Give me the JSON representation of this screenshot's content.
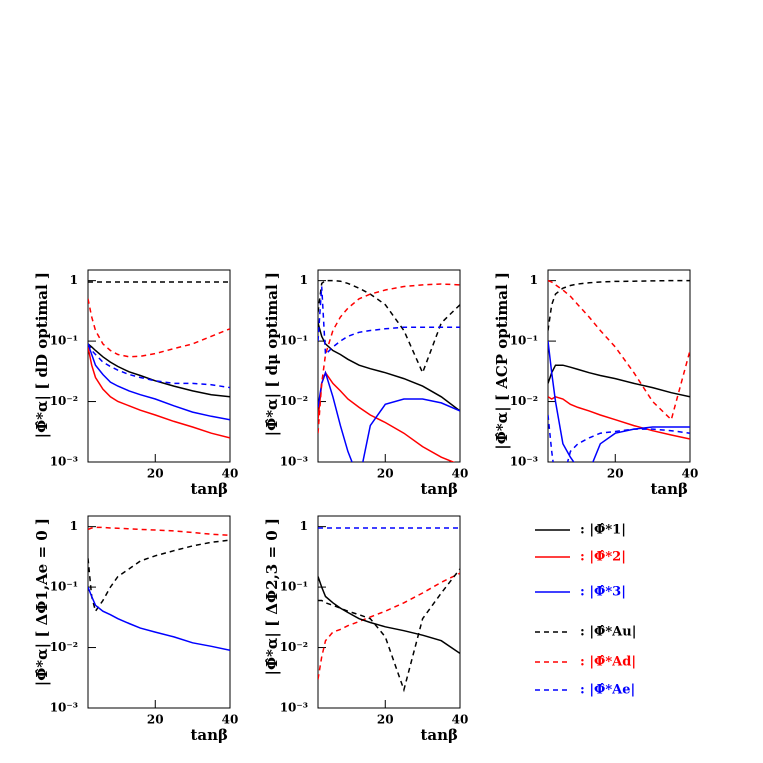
{
  "chart_data": [
    {
      "type": "line",
      "log_y": true,
      "ylabel": "|Φ̂*α| [ dD optimal ]",
      "xlabel": "tanβ",
      "x": [
        2,
        3,
        4,
        6,
        8,
        10,
        13,
        16,
        20,
        25,
        30,
        35,
        40
      ],
      "xlim": [
        2,
        40
      ],
      "xticks": [
        20,
        40
      ],
      "ylim": [
        0.001,
        1.5
      ],
      "yticks": [
        {
          "value": 0.001,
          "label": "10⁻³"
        },
        {
          "value": 0.01,
          "label": "10⁻²"
        },
        {
          "value": 0.1,
          "label": "10⁻¹"
        },
        1
      ],
      "series": [
        {
          "name": ": |Φ̂*1|",
          "color": "#000000",
          "dashed": false,
          "values": [
            0.09,
            0.08,
            0.07,
            0.055,
            0.045,
            0.038,
            0.031,
            0.027,
            0.022,
            0.018,
            0.015,
            0.013,
            0.012
          ]
        },
        {
          "name": ": |Φ̂*2|",
          "color": "#ff0000",
          "dashed": false,
          "values": [
            0.08,
            0.04,
            0.025,
            0.016,
            0.012,
            0.01,
            0.0085,
            0.0072,
            0.006,
            0.0047,
            0.0038,
            0.003,
            0.0025
          ]
        },
        {
          "name": ": |Φ̂*3|",
          "color": "#0000ff",
          "dashed": false,
          "values": [
            0.09,
            0.06,
            0.04,
            0.028,
            0.021,
            0.018,
            0.015,
            0.013,
            0.011,
            0.0085,
            0.0067,
            0.0057,
            0.005
          ]
        },
        {
          "name": ": |Φ̂*Au|",
          "color": "#000000",
          "dashed": true,
          "values": [
            0.95,
            0.95,
            0.95,
            0.95,
            0.95,
            0.95,
            0.95,
            0.95,
            0.95,
            0.95,
            0.95,
            0.95,
            0.95
          ]
        },
        {
          "name": ": |Φ̂*Ad|",
          "color": "#ff0000",
          "dashed": true,
          "values": [
            0.5,
            0.25,
            0.15,
            0.09,
            0.07,
            0.06,
            0.055,
            0.056,
            0.062,
            0.075,
            0.09,
            0.12,
            0.16
          ]
        },
        {
          "name": ": |Φ̂*Ae|",
          "color": "#0000ff",
          "dashed": true,
          "values": [
            0.09,
            0.07,
            0.06,
            0.045,
            0.038,
            0.033,
            0.028,
            0.025,
            0.022,
            0.02,
            0.02,
            0.019,
            0.017
          ]
        }
      ]
    },
    {
      "type": "line",
      "log_y": true,
      "ylabel": "|Φ̂*α| [ dμ optimal ]",
      "xlabel": "tanβ",
      "x": [
        2,
        3,
        4,
        6,
        8,
        10,
        13,
        16,
        20,
        25,
        30,
        35,
        40
      ],
      "xlim": [
        2,
        40
      ],
      "xticks": [
        20,
        40
      ],
      "ylim": [
        0.001,
        1.5
      ],
      "yticks": [
        {
          "value": 0.001,
          "label": "10⁻³"
        },
        {
          "value": 0.01,
          "label": "10⁻²"
        },
        {
          "value": 0.1,
          "label": "10⁻¹"
        },
        1
      ],
      "series": [
        {
          "name": ": |Φ̂*1|",
          "color": "#000000",
          "dashed": false,
          "values": [
            0.2,
            0.12,
            0.09,
            0.07,
            0.06,
            0.05,
            0.04,
            0.035,
            0.03,
            0.024,
            0.018,
            0.012,
            0.007
          ]
        },
        {
          "name": ": |Φ̂*2|",
          "color": "#ff0000",
          "dashed": false,
          "values": [
            0.005,
            0.02,
            0.03,
            0.02,
            0.015,
            0.011,
            0.008,
            0.006,
            0.0045,
            0.003,
            0.0018,
            0.0012,
            0.0009
          ]
        },
        {
          "name": ": |Φ̂*3|",
          "color": "#0000ff",
          "dashed": false,
          "values": [
            0.008,
            0.02,
            0.03,
            0.012,
            0.004,
            0.0015,
            0.0005,
            0.004,
            0.009,
            0.011,
            0.011,
            0.0095,
            0.007
          ]
        },
        {
          "name": ": |Φ̂*Au|",
          "color": "#000000",
          "dashed": true,
          "values": [
            0.3,
            0.9,
            1,
            1,
            0.98,
            0.9,
            0.75,
            0.6,
            0.4,
            0.15,
            0.03,
            0.2,
            0.4
          ]
        },
        {
          "name": ": |Φ̂*Ad|",
          "color": "#ff0000",
          "dashed": true,
          "values": [
            0.003,
            0.02,
            0.06,
            0.15,
            0.25,
            0.35,
            0.5,
            0.6,
            0.7,
            0.8,
            0.85,
            0.88,
            0.85
          ]
        },
        {
          "name": ": |Φ̂*Ae|",
          "color": "#0000ff",
          "dashed": true,
          "values": [
            0.1,
            0.8,
            0.06,
            0.08,
            0.1,
            0.12,
            0.14,
            0.15,
            0.16,
            0.17,
            0.17,
            0.17,
            0.17
          ]
        }
      ]
    },
    {
      "type": "line",
      "log_y": true,
      "ylabel": "|Φ̂*α| [ ACP optimal ]",
      "xlabel": "tanβ",
      "x": [
        2,
        3,
        4,
        6,
        8,
        10,
        13,
        16,
        20,
        25,
        30,
        35,
        40
      ],
      "xlim": [
        2,
        40
      ],
      "xticks": [
        20,
        40
      ],
      "ylim": [
        0.001,
        1.5
      ],
      "yticks": [
        {
          "value": 0.001,
          "label": "10⁻³"
        },
        {
          "value": 0.01,
          "label": "10⁻²"
        },
        {
          "value": 0.1,
          "label": "10⁻¹"
        },
        1
      ],
      "series": [
        {
          "name": ": |Φ̂*1|",
          "color": "#000000",
          "dashed": false,
          "values": [
            0.02,
            0.03,
            0.04,
            0.04,
            0.037,
            0.034,
            0.03,
            0.027,
            0.024,
            0.02,
            0.017,
            0.014,
            0.012
          ]
        },
        {
          "name": ": |Φ̂*2|",
          "color": "#ff0000",
          "dashed": false,
          "values": [
            0.012,
            0.011,
            0.012,
            0.011,
            0.009,
            0.008,
            0.007,
            0.006,
            0.005,
            0.004,
            0.0033,
            0.0028,
            0.0024
          ]
        },
        {
          "name": ": |Φ̂*3|",
          "color": "#0000ff",
          "dashed": false,
          "values": [
            0.1,
            0.03,
            0.01,
            0.002,
            0.0012,
            0.0008,
            0.0007,
            0.002,
            0.003,
            0.0035,
            0.0038,
            0.0038,
            0.0038
          ]
        },
        {
          "name": ": |Φ̂*Au|",
          "color": "#000000",
          "dashed": true,
          "values": [
            0.15,
            0.4,
            0.6,
            0.75,
            0.83,
            0.88,
            0.92,
            0.95,
            0.97,
            0.98,
            0.99,
            1,
            1
          ]
        },
        {
          "name": ": |Φ̂*Ad|",
          "color": "#ff0000",
          "dashed": true,
          "values": [
            1,
            0.95,
            0.85,
            0.7,
            0.55,
            0.4,
            0.25,
            0.15,
            0.08,
            0.03,
            0.01,
            0.005,
            0.07
          ]
        },
        {
          "name": ": |Φ̂*Ae|",
          "color": "#0000ff",
          "dashed": true,
          "values": [
            0.006,
            0.0015,
            0.0005,
            0.0005,
            0.0015,
            0.002,
            0.0025,
            0.003,
            0.0032,
            0.0035,
            0.0035,
            0.0033,
            0.003
          ]
        }
      ]
    },
    {
      "type": "line",
      "log_y": true,
      "ylabel": "|Φ̂*α| [ ΔΦ1,Ae = 0 ]",
      "xlabel": "tanβ",
      "x": [
        2,
        3,
        4,
        6,
        8,
        10,
        13,
        16,
        20,
        25,
        30,
        35,
        40
      ],
      "xlim": [
        2,
        40
      ],
      "xticks": [
        20,
        40
      ],
      "ylim": [
        0.001,
        1.5
      ],
      "yticks": [
        {
          "value": 0.001,
          "label": "10⁻³"
        },
        {
          "value": 0.01,
          "label": "10⁻²"
        },
        {
          "value": 0.1,
          "label": "10⁻¹"
        },
        1
      ],
      "series": [
        {
          "name": ": |Φ̂*Ad|",
          "color": "#ff0000",
          "dashed": true,
          "values": [
            0.9,
            0.95,
            0.97,
            0.97,
            0.95,
            0.94,
            0.92,
            0.9,
            0.88,
            0.85,
            0.8,
            0.75,
            0.72
          ]
        },
        {
          "name": ": |Φ̂*Au|",
          "color": "#000000",
          "dashed": true,
          "values": [
            0.3,
            0.07,
            0.04,
            0.06,
            0.1,
            0.15,
            0.2,
            0.27,
            0.33,
            0.4,
            0.48,
            0.55,
            0.6
          ]
        },
        {
          "name": ": |Φ̂*3|",
          "color": "#0000ff",
          "dashed": false,
          "values": [
            0.1,
            0.07,
            0.05,
            0.04,
            0.035,
            0.03,
            0.025,
            0.021,
            0.018,
            0.015,
            0.012,
            0.0105,
            0.009
          ]
        }
      ]
    },
    {
      "type": "line",
      "log_y": true,
      "ylabel": "|Φ̂*α| [ ΔΦ2,3 = 0 ]",
      "xlabel": "tanβ",
      "x": [
        2,
        3,
        4,
        6,
        8,
        10,
        13,
        16,
        20,
        25,
        30,
        35,
        40
      ],
      "xlim": [
        2,
        40
      ],
      "xticks": [
        20,
        40
      ],
      "ylim": [
        0.001,
        1.5
      ],
      "yticks": [
        {
          "value": 0.001,
          "label": "10⁻³"
        },
        {
          "value": 0.01,
          "label": "10⁻²"
        },
        {
          "value": 0.1,
          "label": "10⁻¹"
        },
        1
      ],
      "series": [
        {
          "name": ": |Φ̂*Ae|",
          "color": "#0000ff",
          "dashed": true,
          "values": [
            0.95,
            0.95,
            0.95,
            0.95,
            0.95,
            0.95,
            0.95,
            0.95,
            0.95,
            0.95,
            0.95,
            0.95,
            0.95
          ]
        },
        {
          "name": ": |Φ̂*Ad|",
          "color": "#ff0000",
          "dashed": true,
          "values": [
            0.003,
            0.007,
            0.013,
            0.018,
            0.02,
            0.023,
            0.027,
            0.032,
            0.04,
            0.055,
            0.08,
            0.12,
            0.17
          ]
        },
        {
          "name": ": |Φ̂*1|",
          "color": "#000000",
          "dashed": false,
          "values": [
            0.15,
            0.1,
            0.07,
            0.055,
            0.045,
            0.038,
            0.03,
            0.026,
            0.022,
            0.019,
            0.016,
            0.013,
            0.008
          ]
        },
        {
          "name": ": |Φ̂*Au|",
          "color": "#000000",
          "dashed": true,
          "values": [
            0.06,
            0.06,
            0.055,
            0.05,
            0.045,
            0.04,
            0.035,
            0.03,
            0.015,
            0.002,
            0.03,
            0.08,
            0.2
          ]
        }
      ]
    }
  ]
}
